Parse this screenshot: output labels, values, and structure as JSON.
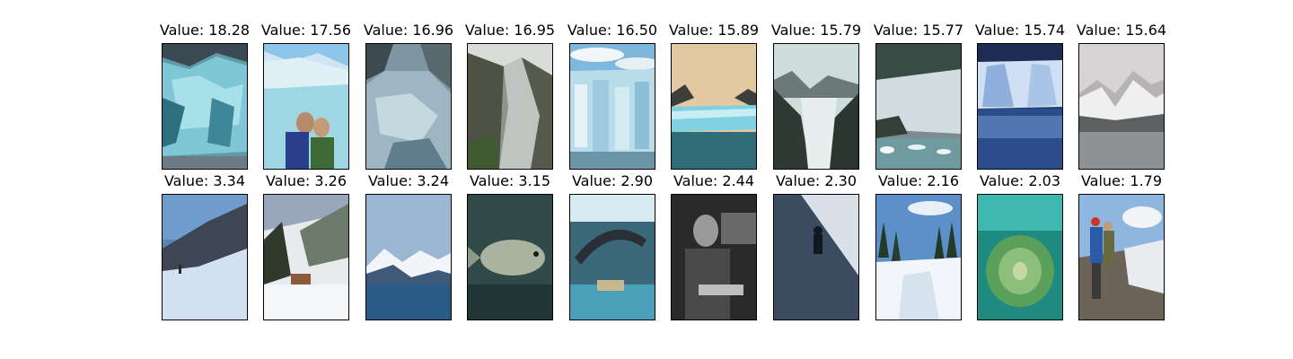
{
  "figure": {
    "top_row": [
      {
        "label": "Value: 18.28",
        "scene": "blue glacier ice wall"
      },
      {
        "label": "Value: 17.56",
        "scene": "couple posing in front of glacier"
      },
      {
        "label": "Value: 16.96",
        "scene": "glacier flowing between mountains"
      },
      {
        "label": "Value: 16.95",
        "scene": "glacier in mountain valley"
      },
      {
        "label": "Value: 16.50",
        "scene": "glacier ice columns under cloudy sky"
      },
      {
        "label": "Value: 15.89",
        "scene": "tidewater glacier at sunset"
      },
      {
        "label": "Value: 15.79",
        "scene": "valley glacier between peaks"
      },
      {
        "label": "Value: 15.77",
        "scene": "glacier with icebergs"
      },
      {
        "label": "Value: 15.74",
        "scene": "glacier face reflected in water"
      },
      {
        "label": "Value: 15.64",
        "scene": "snowy mountains over lake"
      }
    ],
    "bottom_row": [
      {
        "label": "Value: 3.34",
        "scene": "hiker on snow slope"
      },
      {
        "label": "Value: 3.26",
        "scene": "ski resort with snowy trees"
      },
      {
        "label": "Value: 3.24",
        "scene": "snowy mountains over sea"
      },
      {
        "label": "Value: 3.15",
        "scene": "fish underwater"
      },
      {
        "label": "Value: 2.90",
        "scene": "dolphin jumping at aquarium show"
      },
      {
        "label": "Value: 2.44",
        "scene": "black and white singer with guitar"
      },
      {
        "label": "Value: 2.30",
        "scene": "climber on ice wall"
      },
      {
        "label": "Value: 2.16",
        "scene": "snowy forest valley"
      },
      {
        "label": "Value: 2.03",
        "scene": "sea anemone underwater"
      },
      {
        "label": "Value: 1.79",
        "scene": "hikers near snow field"
      }
    ]
  }
}
